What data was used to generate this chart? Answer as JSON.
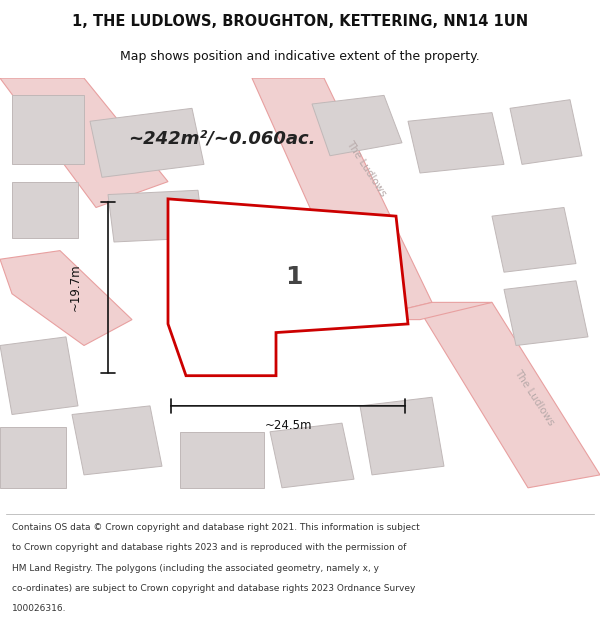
{
  "title_line1": "1, THE LUDLOWS, BROUGHTON, KETTERING, NN14 1UN",
  "title_line2": "Map shows position and indicative extent of the property.",
  "area_text": "~242m²/~0.060ac.",
  "label_number": "1",
  "dim_width": "~24.5m",
  "dim_height": "~19.7m",
  "footer_lines": [
    "Contains OS data © Crown copyright and database right 2021. This information is subject",
    "to Crown copyright and database rights 2023 and is reproduced with the permission of",
    "HM Land Registry. The polygons (including the associated geometry, namely x, y",
    "co-ordinates) are subject to Crown copyright and database rights 2023 Ordnance Survey",
    "100026316."
  ],
  "map_bg": "#f2eded",
  "road_color": "#f0d0d0",
  "road_line_color": "#e8a0a0",
  "building_fill": "#d8d2d2",
  "building_edge": "#c0b8b8",
  "highlight_fill": "#ffffff",
  "highlight_edge": "#cc0000",
  "dim_color": "#111111",
  "street_text_color": "#b8aaaa",
  "title_color": "#111111",
  "footer_color": "#333333"
}
